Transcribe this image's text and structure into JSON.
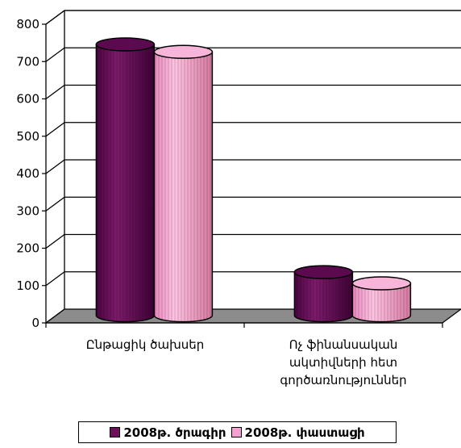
{
  "chart_data": {
    "type": "bar",
    "style": "3d-cylinder",
    "categories": [
      [
        "Ընթացիկ ծախսեր"
      ],
      [
        "Ոչ ֆինանսական",
        "ակտիվների հետ",
        "գործառնություններ"
      ]
    ],
    "series": [
      {
        "name": "2008թ. ծրագիր",
        "values": [
          730,
          120
        ],
        "color": "#6e0f5c"
      },
      {
        "name": "2008թ. փաստացի",
        "values": [
          710,
          90
        ],
        "color": "#f3a2cf"
      }
    ],
    "ylim": [
      0,
      800
    ],
    "yticks": [
      "0",
      "100",
      "200",
      "300",
      "400",
      "500",
      "600",
      "700",
      "800"
    ],
    "grid": true,
    "legend": "bottom"
  }
}
